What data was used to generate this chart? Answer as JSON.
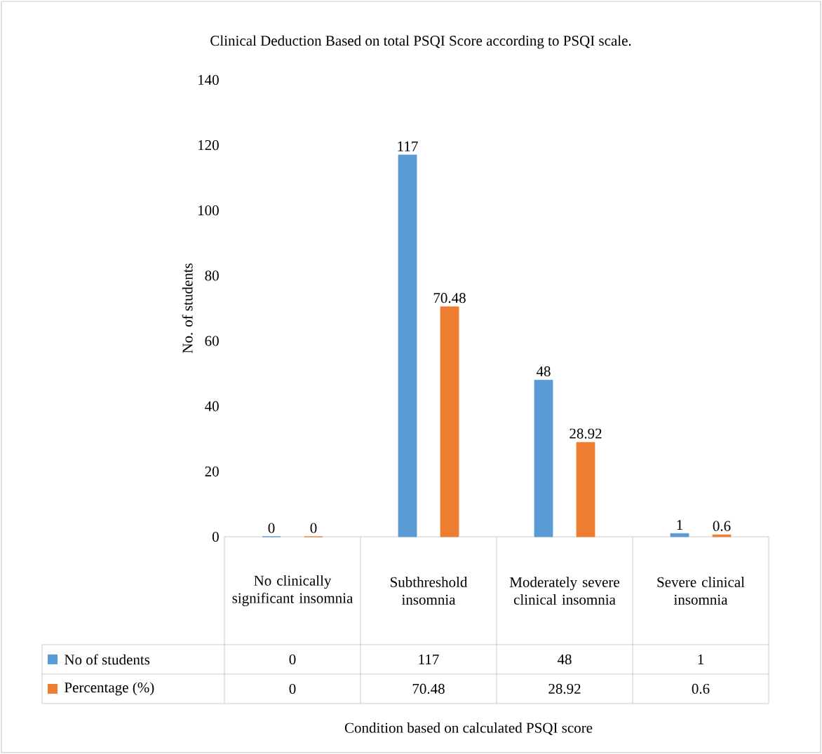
{
  "chart_data": {
    "type": "bar",
    "title": "Clinical Deduction Based on total PSQI Score according to PSQI scale.",
    "ylabel": "No. of students",
    "annotations": [
      "0",
      "117",
      "48",
      "1",
      "0",
      "70.48",
      "28.92",
      "0.6",
      "Condition based on calculated PSQI score"
    ],
    "categories": [
      "No clinically significant insomnia",
      "Subthreshold insomnia",
      "Moderately severe clinical insomnia",
      "Severe clinical insomnia"
    ],
    "series": [
      {
        "name": "No of students",
        "color": "#5b9bd5",
        "values": [
          0,
          117,
          48,
          1
        ],
        "value_labels": [
          "0",
          "117",
          "48",
          "1"
        ]
      },
      {
        "name": "Percentage (%)",
        "color": "#ed7d31",
        "values": [
          0,
          70.48,
          28.92,
          0.6
        ],
        "value_labels": [
          "0",
          "70.48",
          "28.92",
          "0.6"
        ]
      }
    ],
    "ylim": [
      0,
      140
    ],
    "yticks": [
      0,
      20,
      40,
      60,
      80,
      100,
      120,
      140
    ],
    "data_labels": true,
    "legend": "bottom"
  }
}
